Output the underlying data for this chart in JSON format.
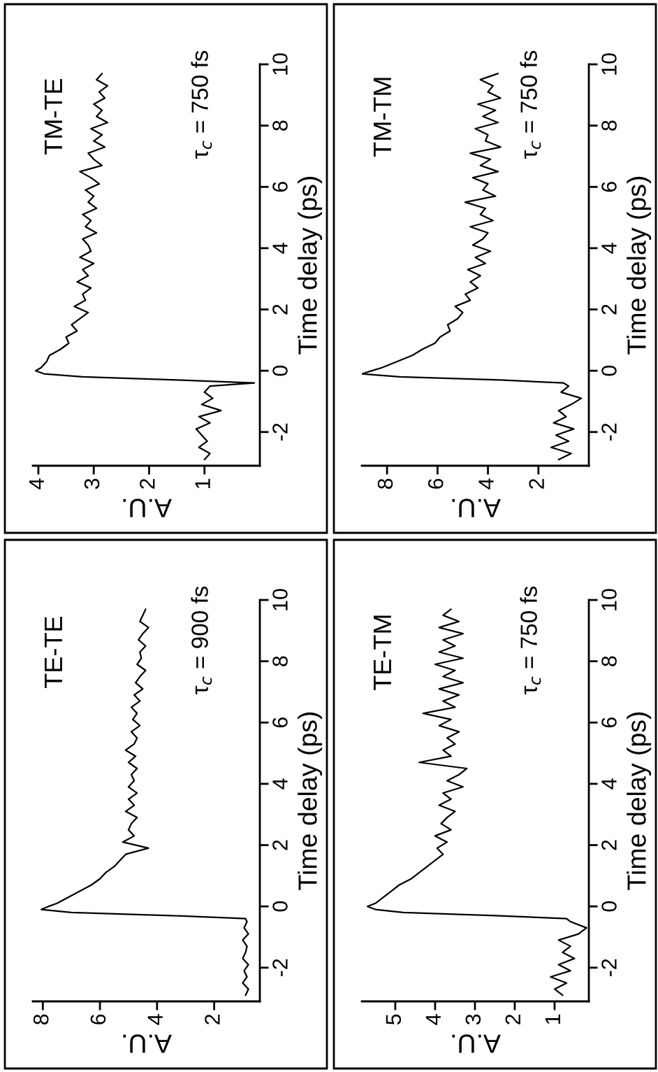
{
  "chart_data": [
    {
      "type": "line",
      "title": "TM-TE",
      "xlabel": "A.U.",
      "ylabel": "Time delay (ps)",
      "annotations": [
        "τ$_{c}$ = 750 fs"
      ],
      "xlim": [
        4.1,
        0
      ],
      "xticks": [
        1,
        2,
        3,
        4
      ],
      "ylim": [
        -3.1,
        10
      ],
      "yticks": [
        -2,
        0,
        2,
        4,
        6,
        8,
        10
      ],
      "grid": false,
      "legend": false,
      "series": [
        {
          "color": "#000000",
          "values": [
            -2.9,
            -2.7,
            -2.5,
            -2.3,
            -2.1,
            -1.9,
            -1.7,
            -1.5,
            -1.3,
            -1.1,
            -0.9,
            -0.7,
            -0.5,
            -0.4,
            -0.3,
            -0.2,
            -0.1,
            0,
            0.1,
            0.3,
            0.5,
            0.7,
            0.9,
            1.1,
            1.3,
            1.5,
            1.7,
            1.9,
            2.1,
            2.3,
            2.5,
            2.7,
            2.9,
            3.1,
            3.3,
            3.5,
            3.7,
            3.9,
            4.1,
            4.3,
            4.5,
            4.7,
            4.9,
            5.1,
            5.3,
            5.5,
            5.7,
            5.9,
            6.1,
            6.3,
            6.5,
            6.7,
            6.9,
            7.1,
            7.3,
            7.5,
            7.7,
            7.9,
            8.1,
            8.3,
            8.5,
            8.7,
            8.9,
            9.1,
            9.3,
            9.5,
            9.7
          ],
          "x": [
            1.0,
            0.9,
            1.1,
            0.95,
            1.05,
            1.15,
            0.9,
            1.1,
            0.7,
            1.05,
            0.85,
            1.0,
            0.9,
            0.1,
            1.5,
            3.2,
            3.9,
            4.05,
            3.95,
            3.85,
            3.8,
            3.6,
            3.45,
            3.5,
            3.3,
            3.4,
            3.25,
            3.1,
            3.35,
            3.15,
            3.2,
            3.05,
            3.3,
            3.1,
            3.2,
            3.0,
            3.25,
            3.05,
            3.1,
            3.2,
            2.95,
            3.15,
            3.05,
            3.2,
            2.95,
            3.1,
            3.0,
            3.15,
            2.9,
            3.05,
            3.25,
            2.85,
            3.0,
            3.1,
            2.8,
            3.0,
            2.85,
            3.05,
            2.75,
            2.95,
            2.85,
            3.0,
            2.8,
            2.9,
            2.75,
            2.95,
            2.85
          ]
        }
      ]
    },
    {
      "type": "line",
      "title": "TM-TM",
      "xlabel": "A.U.",
      "ylabel": "Time delay (ps)",
      "annotations": [
        "τ$_{c}$ = 750 fs"
      ],
      "xlim": [
        9,
        0
      ],
      "xticks": [
        2,
        4,
        6,
        8
      ],
      "ylim": [
        -3.1,
        10
      ],
      "yticks": [
        -2,
        0,
        2,
        4,
        6,
        8,
        10
      ],
      "grid": false,
      "legend": false,
      "series": [
        {
          "color": "#000000",
          "values": [
            -2.9,
            -2.7,
            -2.5,
            -2.3,
            -2.1,
            -1.9,
            -1.7,
            -1.5,
            -1.3,
            -1.1,
            -0.9,
            -0.7,
            -0.5,
            -0.4,
            -0.3,
            -0.2,
            -0.1,
            0,
            0.1,
            0.3,
            0.5,
            0.7,
            0.9,
            1.1,
            1.3,
            1.5,
            1.7,
            1.9,
            2.1,
            2.3,
            2.5,
            2.7,
            2.9,
            3.1,
            3.3,
            3.5,
            3.7,
            3.9,
            4.1,
            4.3,
            4.5,
            4.7,
            4.9,
            5.1,
            5.3,
            5.5,
            5.7,
            5.9,
            6.1,
            6.3,
            6.5,
            6.7,
            6.9,
            7.1,
            7.3,
            7.5,
            7.7,
            7.9,
            8.1,
            8.3,
            8.5,
            8.7,
            8.9,
            9.1,
            9.3,
            9.5,
            9.7
          ],
          "x": [
            1.2,
            0.7,
            1.5,
            0.8,
            1.3,
            0.6,
            1.4,
            0.9,
            1.2,
            0.7,
            0.3,
            1.1,
            0.8,
            1.0,
            3.5,
            7.5,
            9.0,
            8.6,
            8.2,
            7.6,
            7.0,
            6.6,
            6.1,
            5.9,
            5.5,
            5.6,
            5.2,
            5.0,
            5.3,
            4.7,
            4.9,
            4.4,
            4.7,
            4.3,
            4.8,
            4.1,
            4.5,
            3.9,
            4.6,
            4.2,
            4.0,
            4.7,
            3.8,
            4.3,
            4.1,
            4.9,
            3.7,
            4.2,
            4.0,
            4.6,
            3.6,
            4.3,
            3.9,
            4.7,
            3.5,
            4.1,
            4.0,
            4.5,
            3.6,
            4.2,
            3.7,
            4.4,
            3.5,
            4.0,
            3.8,
            4.3,
            3.6
          ]
        }
      ]
    },
    {
      "type": "line",
      "title": "TE-TE",
      "xlabel": "A.U.",
      "ylabel": "Time delay (ps)",
      "annotations": [
        "τ$_{c}$ = 900 fs"
      ],
      "xlim": [
        8.35,
        0.4
      ],
      "xticks": [
        2,
        4,
        6,
        8
      ],
      "ylim": [
        -3.1,
        10
      ],
      "yticks": [
        -2,
        0,
        2,
        4,
        6,
        8,
        10
      ],
      "grid": false,
      "legend": false,
      "series": [
        {
          "color": "#000000",
          "values": [
            -2.9,
            -2.7,
            -2.5,
            -2.3,
            -2.1,
            -1.9,
            -1.7,
            -1.5,
            -1.3,
            -1.1,
            -0.9,
            -0.7,
            -0.5,
            -0.4,
            -0.3,
            -0.2,
            -0.1,
            0,
            0.1,
            0.3,
            0.5,
            0.7,
            0.9,
            1.1,
            1.3,
            1.5,
            1.7,
            1.9,
            2.1,
            2.3,
            2.5,
            2.7,
            2.9,
            3.1,
            3.3,
            3.5,
            3.7,
            3.9,
            4.1,
            4.3,
            4.5,
            4.7,
            4.9,
            5.1,
            5.3,
            5.5,
            5.7,
            5.9,
            6.1,
            6.3,
            6.5,
            6.7,
            6.9,
            7.1,
            7.3,
            7.5,
            7.7,
            7.9,
            8.1,
            8.3,
            8.5,
            8.7,
            8.9,
            9.1,
            9.3,
            9.5,
            9.7
          ],
          "x": [
            0.9,
            0.8,
            1.0,
            0.85,
            0.95,
            0.8,
            1.0,
            0.9,
            0.85,
            1.0,
            0.8,
            0.95,
            0.85,
            0.9,
            3.5,
            7.0,
            8.05,
            7.8,
            7.5,
            7.1,
            6.7,
            6.3,
            6.0,
            5.8,
            5.5,
            5.3,
            5.1,
            4.3,
            5.2,
            4.8,
            5.0,
            4.9,
            4.7,
            5.1,
            4.8,
            5.0,
            4.7,
            5.0,
            4.8,
            4.9,
            4.7,
            5.0,
            4.75,
            5.1,
            4.8,
            4.7,
            4.9,
            4.6,
            4.85,
            4.7,
            4.9,
            4.6,
            4.8,
            4.5,
            4.75,
            4.6,
            4.4,
            4.7,
            4.55,
            4.6,
            4.4,
            4.65,
            4.5,
            4.3,
            4.6,
            4.5,
            4.4
          ]
        }
      ]
    },
    {
      "type": "line",
      "title": "TE-TM",
      "xlabel": "A.U.",
      "ylabel": "Time delay (ps)",
      "annotations": [
        "τ$_{c}$ = 750 fs"
      ],
      "xlim": [
        5.84,
        0.14
      ],
      "xticks": [
        1,
        2,
        3,
        4,
        5
      ],
      "ylim": [
        -3.1,
        10
      ],
      "yticks": [
        -2,
        0,
        2,
        4,
        6,
        8,
        10
      ],
      "grid": false,
      "legend": false,
      "series": [
        {
          "color": "#000000",
          "values": [
            -2.9,
            -2.7,
            -2.5,
            -2.3,
            -2.1,
            -1.9,
            -1.7,
            -1.5,
            -1.3,
            -1.1,
            -0.9,
            -0.7,
            -0.5,
            -0.4,
            -0.3,
            -0.2,
            -0.1,
            0,
            0.1,
            0.3,
            0.5,
            0.7,
            0.9,
            1.1,
            1.3,
            1.5,
            1.7,
            1.9,
            2.1,
            2.3,
            2.5,
            2.7,
            2.9,
            3.1,
            3.3,
            3.5,
            3.7,
            3.9,
            4.1,
            4.3,
            4.5,
            4.7,
            4.9,
            5.1,
            5.3,
            5.5,
            5.7,
            5.9,
            6.1,
            6.3,
            6.5,
            6.7,
            6.9,
            7.1,
            7.3,
            7.5,
            7.7,
            7.9,
            8.1,
            8.3,
            8.5,
            8.7,
            8.9,
            9.1,
            9.3,
            9.5,
            9.7
          ],
          "x": [
            0.8,
            1.0,
            0.7,
            1.1,
            0.6,
            0.9,
            0.5,
            0.8,
            0.6,
            0.9,
            0.4,
            0.2,
            0.6,
            0.7,
            2.5,
            4.8,
            5.5,
            5.7,
            5.5,
            5.3,
            5.1,
            4.9,
            4.6,
            4.4,
            4.2,
            4.0,
            3.8,
            3.95,
            3.7,
            4.0,
            3.6,
            3.85,
            3.7,
            3.5,
            3.9,
            3.6,
            3.8,
            3.3,
            3.7,
            3.4,
            3.2,
            4.4,
            3.6,
            3.8,
            3.5,
            3.7,
            3.4,
            3.9,
            3.6,
            4.3,
            3.5,
            3.8,
            3.4,
            3.9,
            3.3,
            3.8,
            3.5,
            4.0,
            3.3,
            3.9,
            3.5,
            3.8,
            3.3,
            3.9,
            3.4,
            3.8,
            3.6
          ]
        }
      ]
    }
  ]
}
